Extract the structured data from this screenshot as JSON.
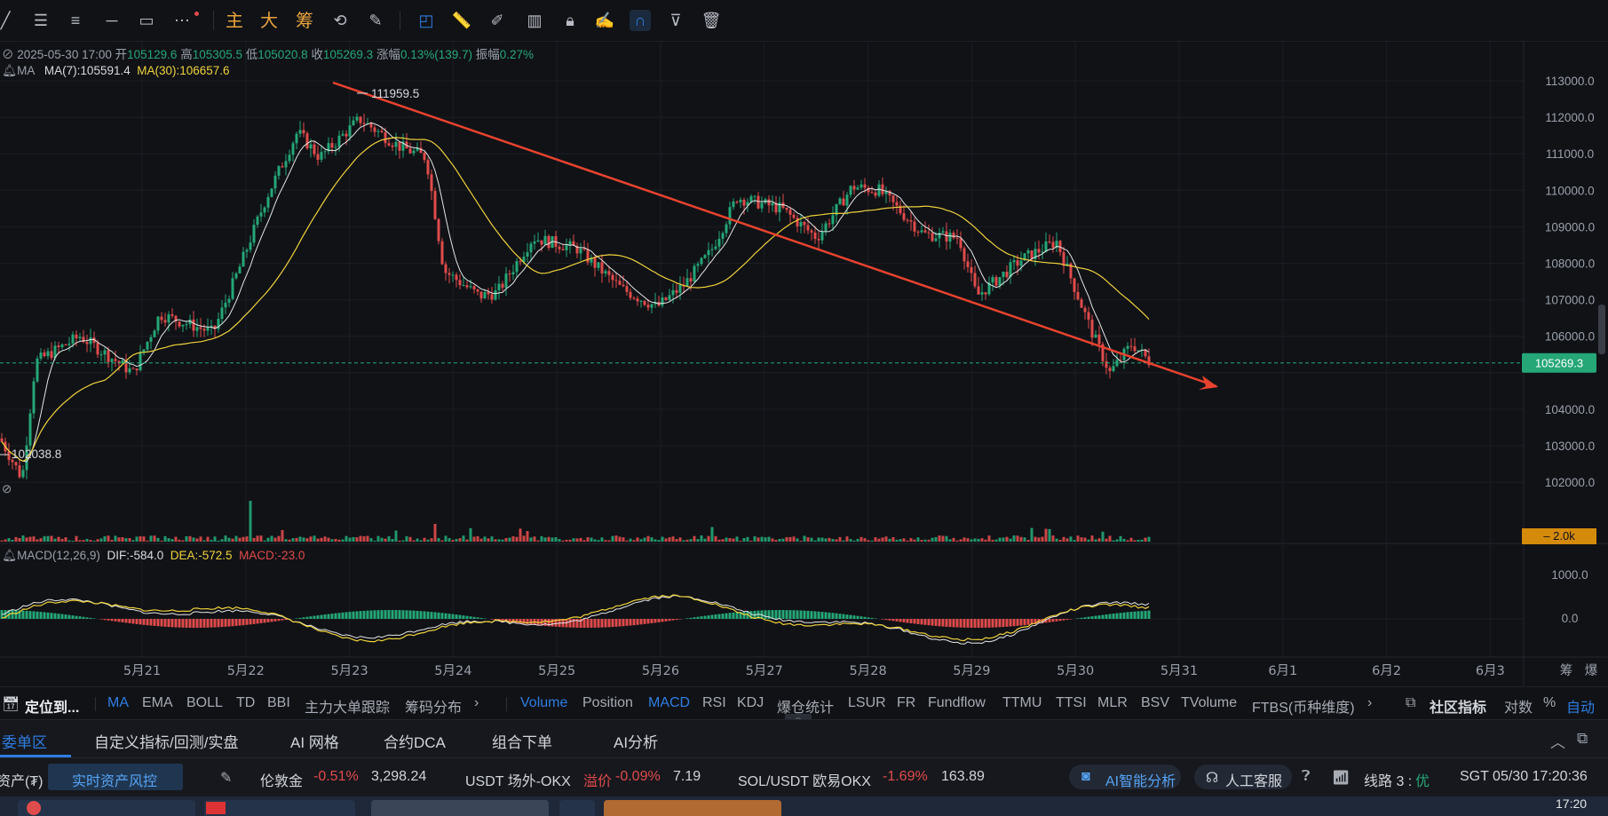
{
  "toolbar": {
    "cn_buttons": [
      "主",
      "大",
      "筹"
    ]
  },
  "ohlc": {
    "date": "2025-05-30 17:00",
    "open_label": "开",
    "open": "105129.6",
    "high_label": "高",
    "high": "105305.5",
    "low_label": "低",
    "low": "105020.8",
    "close_label": "收",
    "close": "105269.3",
    "change_label": "涨幅",
    "change": "0.13%(139.7)",
    "amp_label": "振幅",
    "amp": "0.27%"
  },
  "ma": {
    "name": "MA",
    "ma7": "MA(7):105591.4",
    "ma30": "MA(30):106657.6"
  },
  "annotations": {
    "high_marker": "111959.5",
    "low_marker": "102038.8"
  },
  "price_axis": {
    "ticks": [
      "113000.0",
      "112000.0",
      "111000.0",
      "110000.0",
      "109000.0",
      "108000.0",
      "107000.0",
      "106000.0",
      "105000.0",
      "104000.0",
      "103000.0",
      "102000.0"
    ],
    "current_price": "105269.3",
    "volume_tag": "2.0k"
  },
  "macd": {
    "name": "MACD(12,26,9)",
    "dif": "DIF:-584.0",
    "dea": "DEA:-572.5",
    "macd": "MACD:-23.0",
    "ticks": [
      "1000.0",
      "0.0"
    ]
  },
  "time_axis": {
    "labels": [
      "5月21",
      "5月22",
      "5月23",
      "5月24",
      "5月25",
      "5月26",
      "5月27",
      "5月28",
      "5月29",
      "5月30",
      "5月31",
      "6月1",
      "6月2",
      "6月3"
    ],
    "right_labels": [
      "筹",
      "爆"
    ]
  },
  "indicators": {
    "locate": "定位到...",
    "main": [
      "MA",
      "EMA",
      "BOLL",
      "TD",
      "BBI",
      "主力大单跟踪",
      "筹码分布"
    ],
    "sub": [
      "Volume",
      "Position",
      "MACD",
      "RSI",
      "KDJ",
      "爆仓统计",
      "LSUR",
      "FR",
      "Fundflow",
      "TTMU",
      "TTSI",
      "MLR",
      "BSV",
      "TVolume",
      "FTBS(币种维度)"
    ],
    "community": "社区指标",
    "log": "对数",
    "pct": "%",
    "auto": "自动"
  },
  "tabs": [
    "委单区",
    "自定义指标/回测/实盘",
    "AI 网格",
    "合约DCA",
    "组合下单",
    "AI分析"
  ],
  "status": {
    "asset": "资产(₮)",
    "risk": "实时资产风控",
    "gold_name": "伦敦金",
    "gold_chg": "-0.51%",
    "gold_price": "3,298.24",
    "usdt_name": "USDT 场外-OKX",
    "usdt_prem_label": "溢价",
    "usdt_prem": "-0.09%",
    "usdt_price": "7.19",
    "sol_name": "SOL/USDT 欧易OKX",
    "sol_chg": "-1.69%",
    "sol_price": "163.89",
    "ai": "AI智能分析",
    "service": "人工客服",
    "line": "线路 3 :",
    "line_quality": "优",
    "clock": "SGT  05/30 17:20:36"
  },
  "taskbar": {
    "time": "17:20"
  },
  "colors": {
    "up": "#25a777",
    "down": "#e04b4b",
    "ma7": "#e6e6e6",
    "ma30": "#f0d23c",
    "trendline": "#e8432f",
    "accent": "#2f7de1"
  }
}
